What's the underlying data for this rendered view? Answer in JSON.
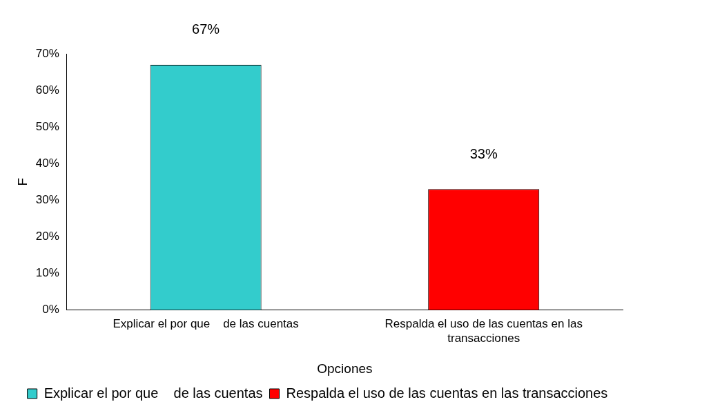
{
  "chart_data": {
    "type": "bar",
    "categories": [
      "Explicar el por que    de las cuentas",
      "Respalda el uso de las cuentas en las transacciones"
    ],
    "series": [
      {
        "name": "Explicar el por que    de las cuentas",
        "color": "#33cccc",
        "values": [
          67,
          null
        ],
        "value_labels": [
          "67%",
          null
        ]
      },
      {
        "name": "Respalda el uso de las cuentas en las transacciones",
        "color": "#ff0000",
        "values": [
          null,
          33
        ],
        "value_labels": [
          null,
          "33%"
        ]
      }
    ],
    "ylim": [
      0,
      70
    ],
    "yticks": [
      {
        "value": 0,
        "label": "0%"
      },
      {
        "value": 10,
        "label": "10%"
      },
      {
        "value": 20,
        "label": "20%"
      },
      {
        "value": 30,
        "label": "30%"
      },
      {
        "value": 40,
        "label": "40%"
      },
      {
        "value": 50,
        "label": "50%"
      },
      {
        "value": 60,
        "label": "60%"
      },
      {
        "value": 70,
        "label": "70%"
      }
    ],
    "xlabel": "Opciones",
    "ylabel": "F",
    "grid": false,
    "legend": "bottom"
  }
}
